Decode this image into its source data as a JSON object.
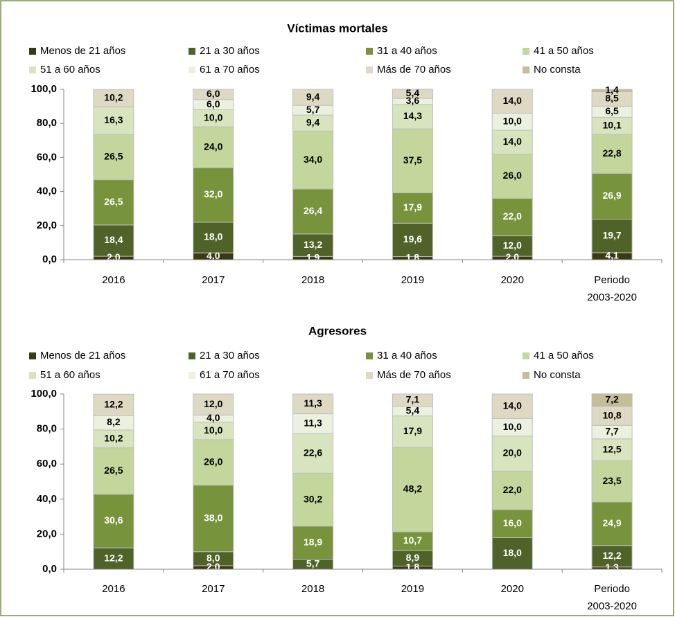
{
  "chart_data": [
    {
      "type": "stacked_bar",
      "title": "Víctimas mortales",
      "categories": [
        "2016",
        "2017",
        "2018",
        "2019",
        "2020",
        "Periodo 2003-2020"
      ],
      "ylim": [
        0,
        100
      ],
      "yticks": [
        {
          "value": 0,
          "label": "0,0"
        },
        {
          "value": 20,
          "label": "20,0"
        },
        {
          "value": 40,
          "label": "40,0"
        },
        {
          "value": 60,
          "label": "60,0"
        },
        {
          "value": 80,
          "label": "80,0"
        },
        {
          "value": 100,
          "label": "100,0"
        }
      ],
      "grid": false,
      "series": [
        {
          "name": "Menos de 21 años",
          "color": "#3a3a12",
          "values": [
            2.0,
            4.0,
            1.9,
            1.8,
            2.0,
            4.1
          ],
          "value_labels": [
            "2,0",
            "4,0",
            "1,9",
            "1,8",
            "2,0",
            "4,1"
          ]
        },
        {
          "name": "21 a 30 años",
          "color": "#4f6228",
          "values": [
            18.4,
            18.0,
            13.2,
            19.6,
            12.0,
            19.7
          ],
          "value_labels": [
            "18,4",
            "18,0",
            "13,2",
            "19,6",
            "12,0",
            "19,7"
          ]
        },
        {
          "name": "31 a 40 años",
          "color": "#77933c",
          "values": [
            26.5,
            32.0,
            26.4,
            17.9,
            22.0,
            26.9
          ],
          "value_labels": [
            "26,5",
            "32,0",
            "26,4",
            "17,9",
            "22,0",
            "26,9"
          ]
        },
        {
          "name": "41 a 50 años",
          "color": "#c3d69b",
          "values": [
            26.5,
            24.0,
            34.0,
            37.5,
            26.0,
            22.8
          ],
          "value_labels": [
            "26,5",
            "24,0",
            "34,0",
            "37,5",
            "26,0",
            "22,8"
          ]
        },
        {
          "name": "51 a 60 años",
          "color": "#d7e4bd",
          "values": [
            16.3,
            10.0,
            9.4,
            14.3,
            14.0,
            10.1
          ],
          "value_labels": [
            "16,3",
            "10,0",
            "9,4",
            "14,3",
            "14,0",
            "10,1"
          ]
        },
        {
          "name": "61 a 70 años",
          "color": "#ebf1de",
          "values": [
            null,
            6.0,
            5.7,
            3.6,
            10.0,
            6.5
          ],
          "value_labels": [
            null,
            "6,0",
            "5,7",
            "3,6",
            "10,0",
            "6,5"
          ]
        },
        {
          "name": "Más de 70 años",
          "color": "#ddd9c3",
          "values": [
            10.2,
            6.0,
            9.4,
            5.4,
            14.0,
            8.5
          ],
          "value_labels": [
            "10,2",
            "6,0",
            "9,4",
            "5,4",
            "14,0",
            "8,5"
          ]
        },
        {
          "name": "No consta",
          "color": "#c4bd97",
          "values": [
            null,
            null,
            null,
            null,
            null,
            1.4
          ],
          "value_labels": [
            null,
            null,
            null,
            null,
            null,
            "1,4"
          ]
        }
      ]
    },
    {
      "type": "stacked_bar",
      "title": "Agresores",
      "categories": [
        "2016",
        "2017",
        "2018",
        "2019",
        "2020",
        "Periodo 2003-2020"
      ],
      "ylim": [
        0,
        100
      ],
      "yticks": [
        {
          "value": 0,
          "label": "0,0"
        },
        {
          "value": 20,
          "label": "20,0"
        },
        {
          "value": 40,
          "label": "40,0"
        },
        {
          "value": 60,
          "label": "60,0"
        },
        {
          "value": 80,
          "label": "80,0"
        },
        {
          "value": 100,
          "label": "100,0"
        }
      ],
      "grid": false,
      "series": [
        {
          "name": "Menos de 21 años",
          "color": "#3a3a12",
          "values": [
            null,
            2.0,
            null,
            1.8,
            null,
            1.3
          ],
          "value_labels": [
            null,
            "2,0",
            null,
            "1,8",
            null,
            "1,3"
          ]
        },
        {
          "name": "21 a 30 años",
          "color": "#4f6228",
          "values": [
            12.2,
            8.0,
            5.7,
            8.9,
            18.0,
            12.2
          ],
          "value_labels": [
            "12,2",
            "8,0",
            "5,7",
            "8,9",
            "18,0",
            "12,2"
          ]
        },
        {
          "name": "31 a 40 años",
          "color": "#77933c",
          "values": [
            30.6,
            38.0,
            18.9,
            10.7,
            16.0,
            24.9
          ],
          "value_labels": [
            "30,6",
            "38,0",
            "18,9",
            "10,7",
            "16,0",
            "24,9"
          ]
        },
        {
          "name": "41 a 50 años",
          "color": "#c3d69b",
          "values": [
            26.5,
            26.0,
            30.2,
            48.2,
            22.0,
            23.5
          ],
          "value_labels": [
            "26,5",
            "26,0",
            "30,2",
            "48,2",
            "22,0",
            "23,5"
          ]
        },
        {
          "name": "51 a 60 años",
          "color": "#d7e4bd",
          "values": [
            10.2,
            10.0,
            22.6,
            17.9,
            20.0,
            12.5
          ],
          "value_labels": [
            "10,2",
            "10,0",
            "22,6",
            "17,9",
            "20,0",
            "12,5"
          ]
        },
        {
          "name": "61 a 70 años",
          "color": "#ebf1de",
          "values": [
            8.2,
            4.0,
            11.3,
            5.4,
            10.0,
            7.7
          ],
          "value_labels": [
            "8,2",
            "4,0",
            "11,3",
            "5,4",
            "10,0",
            "7,7"
          ]
        },
        {
          "name": "Más de 70 años",
          "color": "#ddd9c3",
          "values": [
            12.2,
            12.0,
            11.3,
            7.1,
            14.0,
            10.8
          ],
          "value_labels": [
            "12,2",
            "12,0",
            "11,3",
            "7,1",
            "14,0",
            "10,8"
          ]
        },
        {
          "name": "No consta",
          "color": "#c4bd97",
          "values": [
            null,
            null,
            null,
            null,
            null,
            7.2
          ],
          "value_labels": [
            null,
            null,
            null,
            null,
            null,
            "7,2"
          ]
        }
      ]
    }
  ]
}
